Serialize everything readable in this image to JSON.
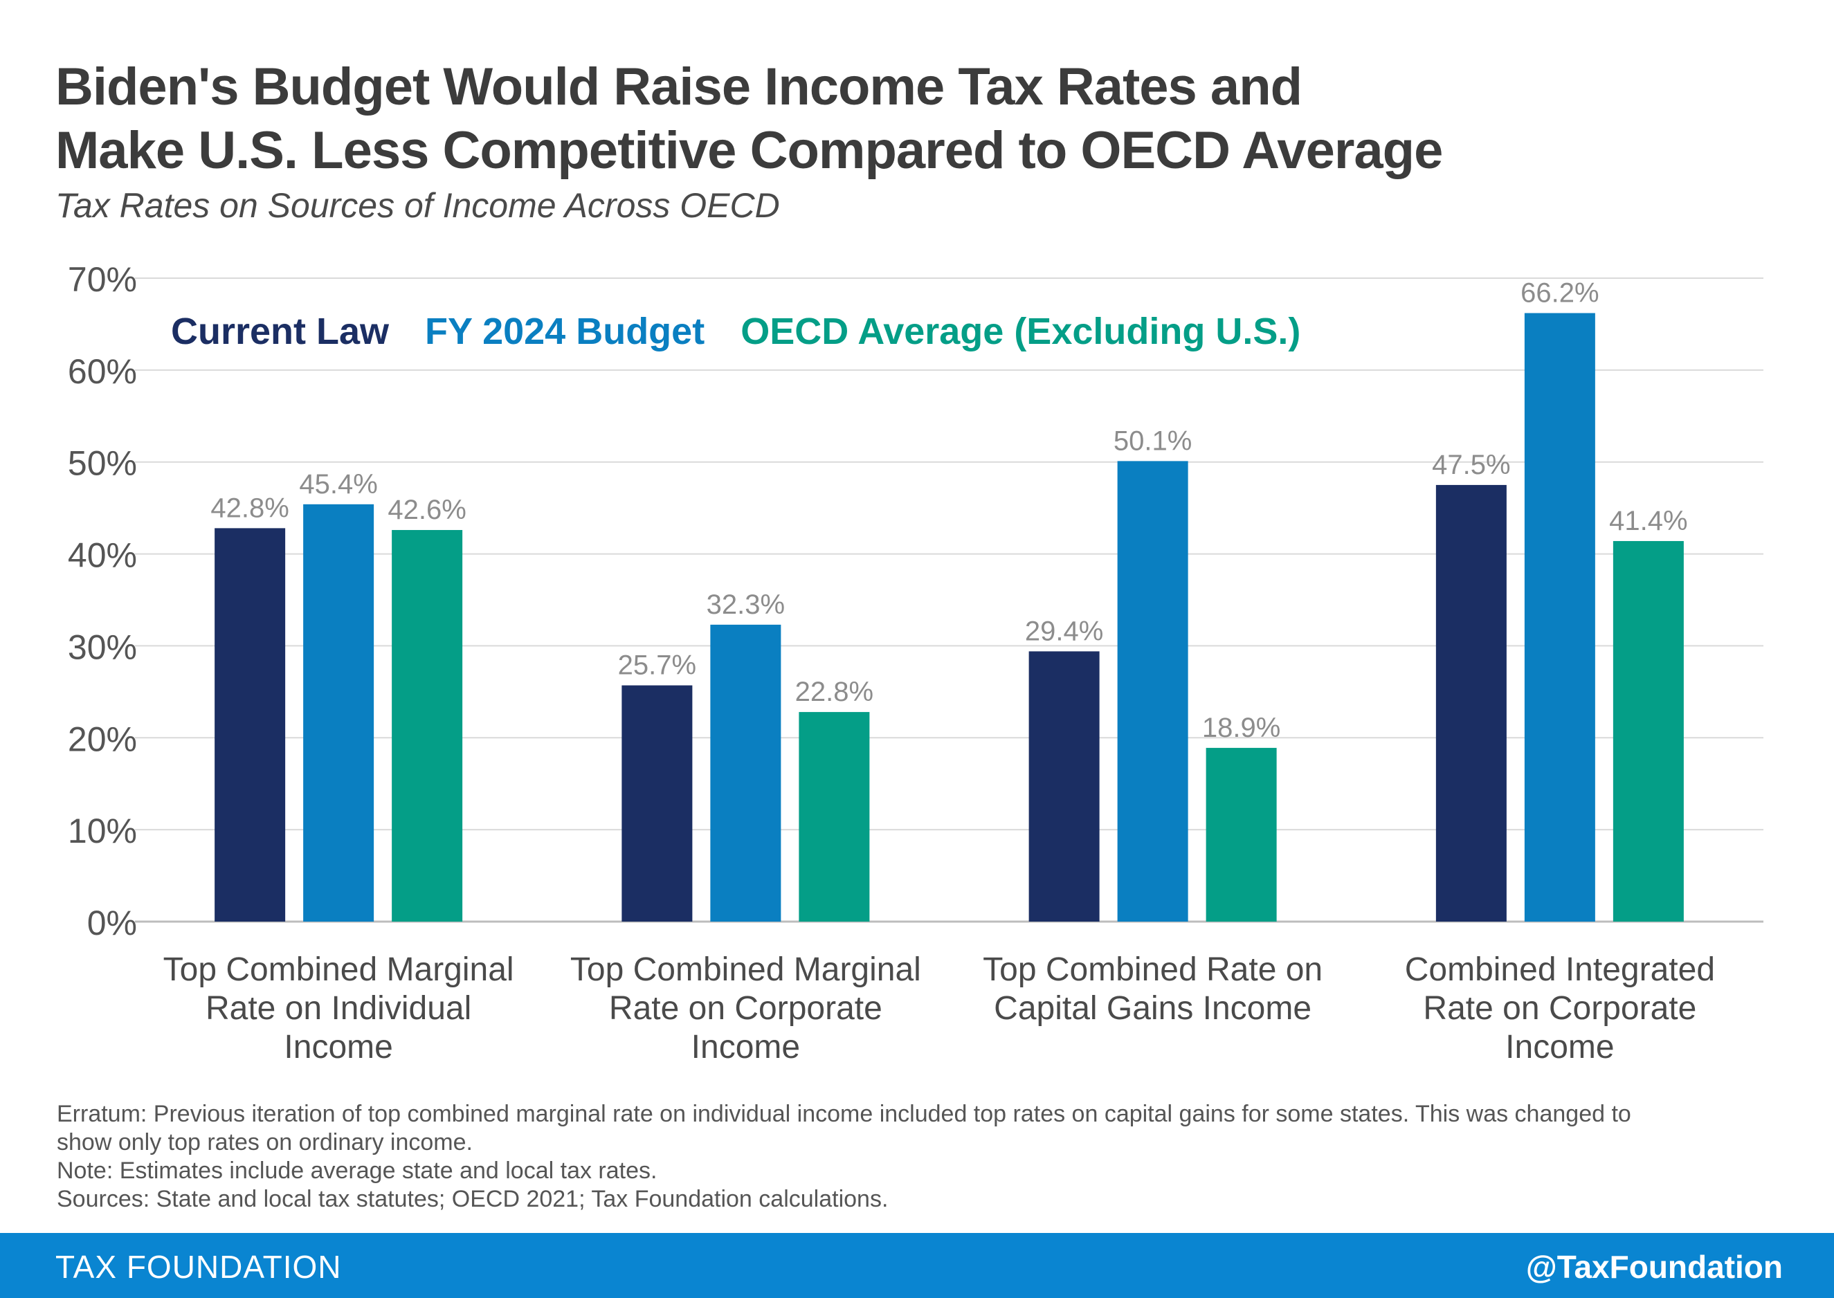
{
  "title_lines": [
    "Biden's Budget Would Raise Income Tax Rates and",
    "Make U.S. Less Competitive Compared to OECD Average"
  ],
  "subtitle": "Tax Rates on Sources of Income Across OECD",
  "chart_data": {
    "type": "bar",
    "categories": [
      [
        "Top Combined Marginal",
        "Rate on Individual",
        "Income"
      ],
      [
        "Top Combined Marginal",
        "Rate on Corporate",
        "Income"
      ],
      [
        "Top Combined Rate on",
        "Capital Gains Income"
      ],
      [
        "Combined Integrated",
        "Rate on Corporate",
        "Income"
      ]
    ],
    "series": [
      {
        "name": "Current Law",
        "color": "#1b2e63",
        "values": [
          42.8,
          25.7,
          29.4,
          47.5
        ],
        "labels": [
          "42.8%",
          "25.7%",
          "29.4%",
          "47.5%"
        ]
      },
      {
        "name": "FY 2024 Budget",
        "color": "#0a7fc1",
        "values": [
          45.4,
          32.3,
          50.1,
          66.2
        ],
        "labels": [
          "45.4%",
          "32.3%",
          "50.1%",
          "66.2%"
        ]
      },
      {
        "name": "OECD Average (Excluding U.S.)",
        "color": "#049e87",
        "values": [
          42.6,
          22.8,
          18.9,
          41.4
        ],
        "labels": [
          "42.6%",
          "22.8%",
          "18.9%",
          "41.4%"
        ]
      }
    ],
    "ylim": [
      0,
      70
    ],
    "yticks": [
      "0%",
      "10%",
      "20%",
      "30%",
      "40%",
      "50%",
      "60%",
      "70%"
    ],
    "grid": true,
    "legend_position": "top-left"
  },
  "notes": [
    "Erratum: Previous iteration of top combined marginal rate on individual income included top rates on capital gains for some states. This was changed to",
    "show only top rates on ordinary income.",
    "Note: Estimates include average state and local tax rates.",
    "Sources: State and local tax statutes; OECD 2021; Tax Foundation calculations."
  ],
  "footer": {
    "brand": "TAX FOUNDATION",
    "handle": "@TaxFoundation"
  }
}
